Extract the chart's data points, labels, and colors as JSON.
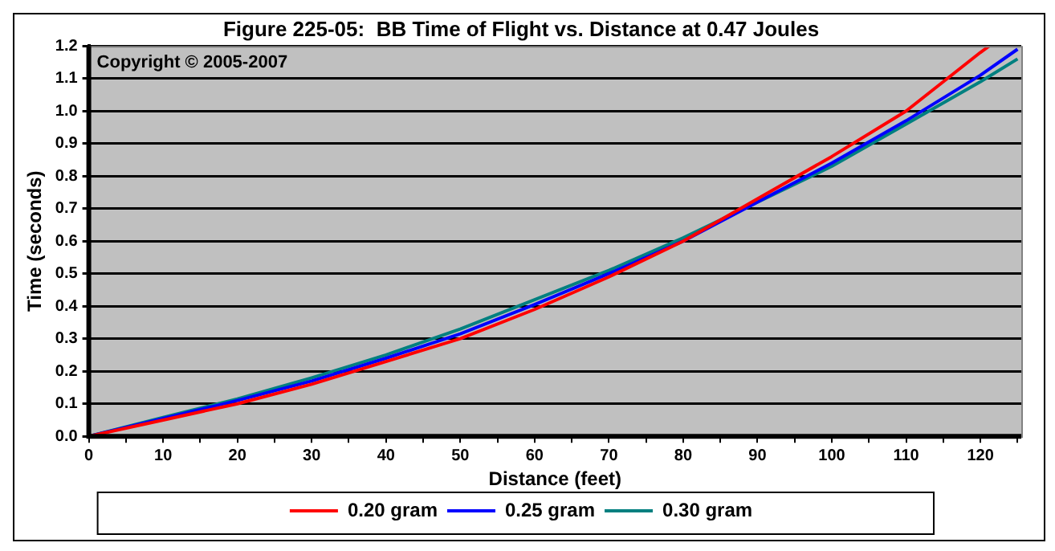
{
  "chart_data": {
    "type": "line",
    "title": "Figure 225-05:  BB Time of Flight vs. Distance at 0.47 Joules",
    "xlabel": "Distance (feet)",
    "ylabel": "Time (seconds)",
    "annotations": [
      "Copyright © 2005-2007"
    ],
    "x": [
      0,
      10,
      20,
      30,
      40,
      50,
      60,
      70,
      80,
      90,
      100,
      110,
      120,
      125
    ],
    "series": [
      {
        "name": "0.20 gram",
        "color": "#ff0000",
        "x": [
          0,
          10,
          20,
          30,
          40,
          50,
          60,
          70,
          80,
          90,
          100,
          110,
          120,
          121.2
        ],
        "values": [
          0,
          0.05,
          0.1,
          0.16,
          0.23,
          0.3,
          0.39,
          0.49,
          0.6,
          0.73,
          0.86,
          1.0,
          1.18,
          1.2
        ]
      },
      {
        "name": "0.25 gram",
        "color": "#0000ff",
        "values": [
          0,
          0.055,
          0.11,
          0.17,
          0.24,
          0.315,
          0.405,
          0.5,
          0.6,
          0.72,
          0.84,
          0.97,
          1.11,
          1.19
        ]
      },
      {
        "name": "0.30 gram",
        "color": "#008080",
        "values": [
          0,
          0.058,
          0.115,
          0.18,
          0.25,
          0.33,
          0.42,
          0.51,
          0.61,
          0.72,
          0.83,
          0.96,
          1.09,
          1.16
        ]
      }
    ],
    "xlim": [
      0,
      125.5
    ],
    "xticks": [
      0,
      {
        "value": 5,
        "label": null
      },
      10,
      {
        "value": 15,
        "label": null
      },
      20,
      {
        "value": 25,
        "label": null
      },
      30,
      {
        "value": 35,
        "label": null
      },
      40,
      {
        "value": 45,
        "label": null
      },
      50,
      {
        "value": 55,
        "label": null
      },
      60,
      {
        "value": 65,
        "label": null
      },
      70,
      {
        "value": 75,
        "label": null
      },
      80,
      {
        "value": 85,
        "label": null
      },
      90,
      {
        "value": 95,
        "label": null
      },
      100,
      {
        "value": 105,
        "label": null
      },
      110,
      {
        "value": 115,
        "label": null
      },
      120,
      {
        "value": 125,
        "label": null
      }
    ],
    "ylim": [
      0,
      1.2
    ],
    "yticks": [
      {
        "value": 0,
        "label": "0.0"
      },
      0.1,
      0.2,
      0.3,
      0.4,
      0.5,
      0.6,
      0.7,
      0.8,
      0.9,
      {
        "value": 1,
        "label": "1.0"
      },
      1.1,
      1.2
    ],
    "grid": "y",
    "legend": "bottom",
    "marker": "none",
    "line_style": "solid"
  }
}
